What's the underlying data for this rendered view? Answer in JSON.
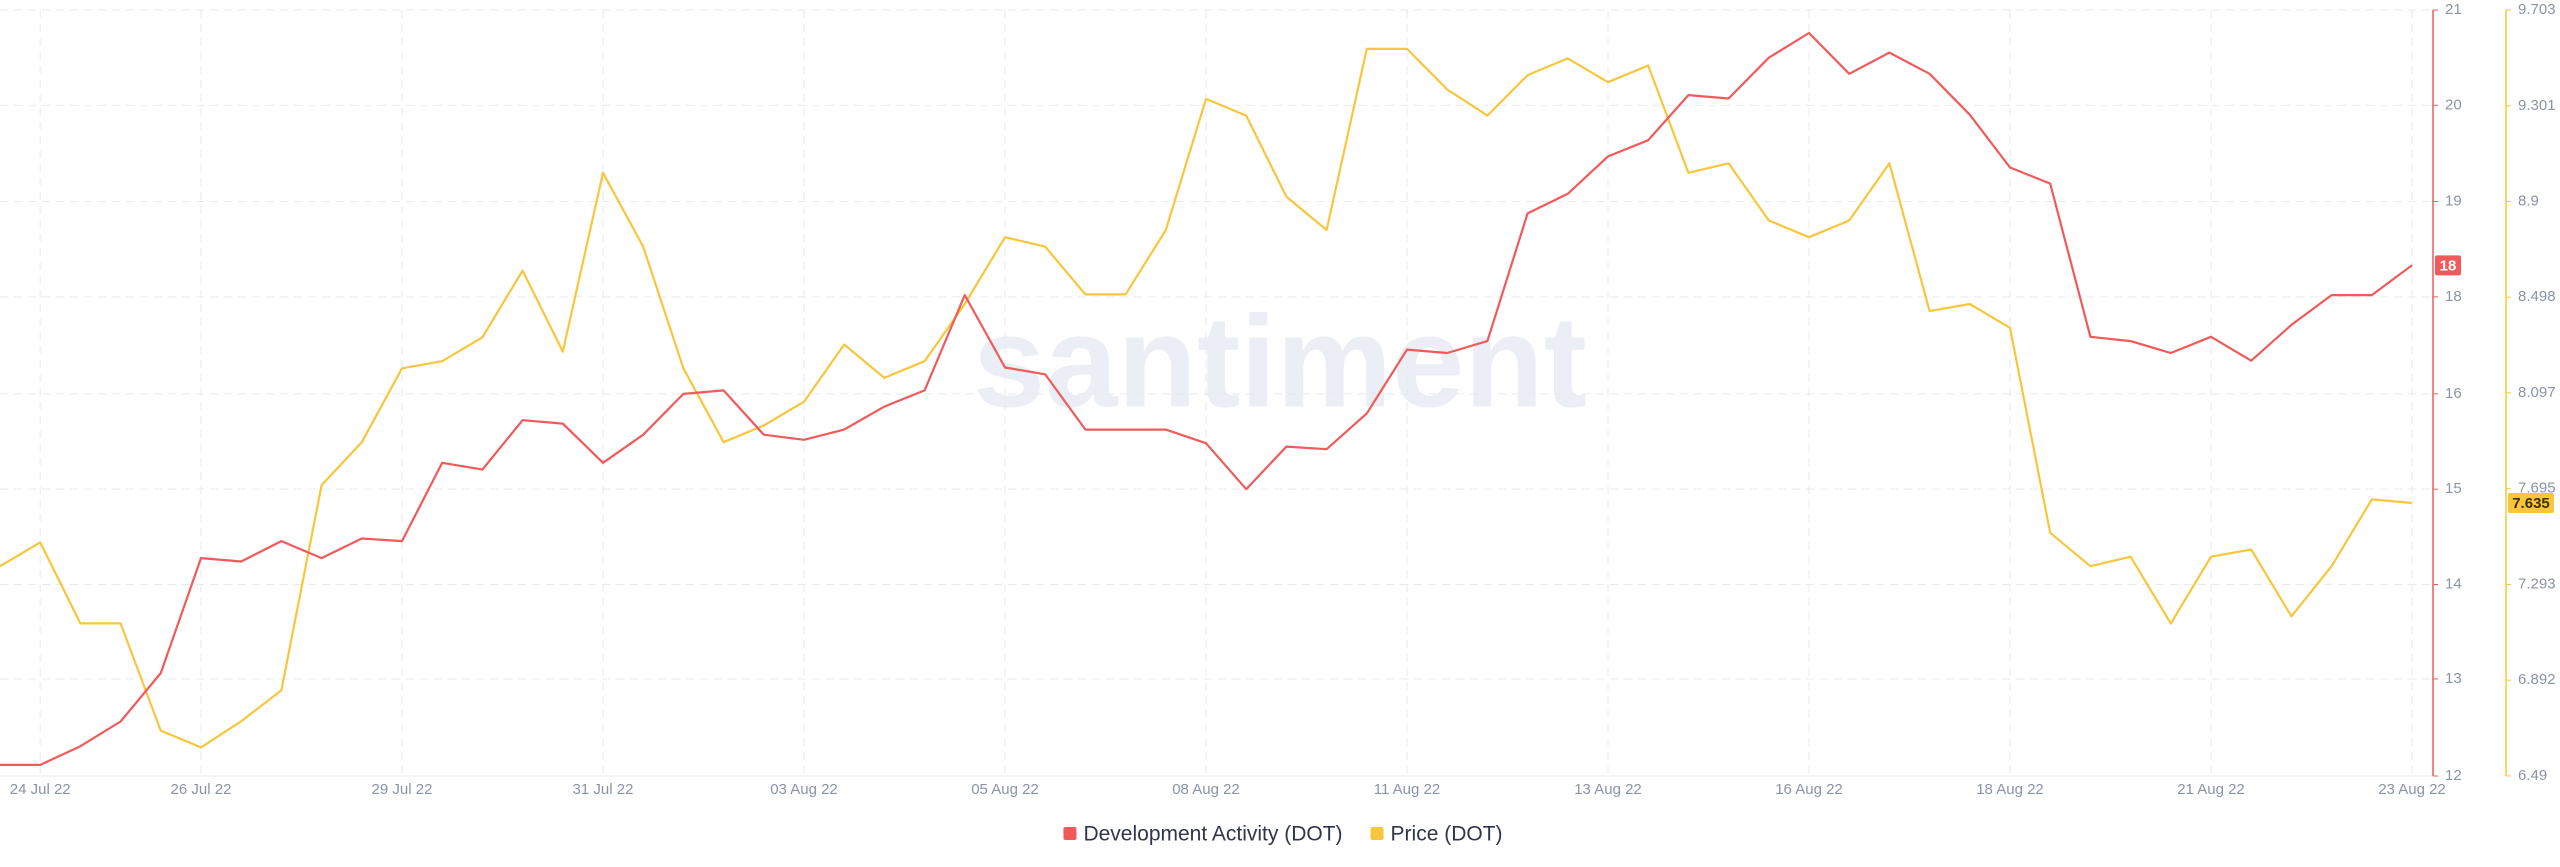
{
  "chart_data": {
    "type": "line",
    "watermark": "santiment",
    "categories": [
      null,
      "24 Jul 22",
      null,
      null,
      null,
      "26 Jul 22",
      null,
      null,
      null,
      null,
      "29 Jul 22",
      null,
      null,
      null,
      null,
      "31 Jul 22",
      null,
      null,
      null,
      null,
      "03 Aug 22",
      null,
      null,
      null,
      null,
      "05 Aug 22",
      null,
      null,
      null,
      null,
      "08 Aug 22",
      null,
      null,
      null,
      null,
      "11 Aug 22",
      null,
      null,
      null,
      null,
      "13 Aug 22",
      null,
      null,
      null,
      null,
      "16 Aug 22",
      null,
      null,
      null,
      null,
      "18 Aug 22",
      null,
      null,
      null,
      null,
      "21 Aug 22",
      null,
      null,
      null,
      null,
      "23 Aug 22"
    ],
    "series": [
      {
        "name": "Development Activity (DOT)",
        "color": "#f05a5a",
        "axis": "y",
        "values": [
          12.13,
          12.13,
          12.35,
          12.64,
          13.21,
          14.56,
          14.52,
          14.76,
          14.56,
          14.79,
          14.76,
          15.68,
          15.6,
          16.18,
          16.14,
          15.68,
          16.01,
          16.49,
          16.53,
          16.01,
          15.95,
          16.07,
          16.34,
          16.53,
          17.65,
          16.8,
          16.72,
          16.07,
          16.07,
          16.07,
          15.91,
          15.37,
          15.87,
          15.84,
          16.26,
          17.01,
          16.97,
          17.11,
          18.61,
          18.84,
          19.28,
          19.47,
          20.0,
          19.96,
          20.44,
          20.73,
          20.25,
          20.5,
          20.25,
          19.77,
          19.15,
          18.96,
          17.16,
          17.11,
          16.97,
          17.16,
          16.88,
          17.3,
          17.65,
          17.65,
          18
        ]
      },
      {
        "name": "Price (DOT)",
        "color": "#f8c63d",
        "axis": "y2",
        "values": [
          7.37,
          7.47,
          7.13,
          7.13,
          6.68,
          6.61,
          6.72,
          6.85,
          7.71,
          7.89,
          8.2,
          8.23,
          8.33,
          8.61,
          8.27,
          9.02,
          8.71,
          8.2,
          7.89,
          7.96,
          8.06,
          8.3,
          8.16,
          8.23,
          8.47,
          8.75,
          8.71,
          8.51,
          8.51,
          8.78,
          9.33,
          9.26,
          8.92,
          8.78,
          9.54,
          9.54,
          9.37,
          9.26,
          9.43,
          9.5,
          9.4,
          9.47,
          9.02,
          9.06,
          8.82,
          8.75,
          8.82,
          9.06,
          8.44,
          8.47,
          8.37,
          7.51,
          7.37,
          7.41,
          7.13,
          7.41,
          7.44,
          7.16,
          7.37,
          7.65,
          7.635
        ]
      }
    ],
    "ylim": [
      12,
      21
    ],
    "yticks": [
      12,
      {
        "value": 13.14,
        "label": "13"
      },
      {
        "value": 14.25,
        "label": "14"
      },
      {
        "value": 15.37,
        "label": "15"
      },
      {
        "value": 16.49,
        "label": "16"
      },
      {
        "value": 17.63,
        "label": "18"
      },
      {
        "value": 18.75,
        "label": "19"
      },
      {
        "value": 19.88,
        "label": "20"
      },
      21
    ],
    "y2lim": [
      6.49,
      9.703
    ],
    "y2ticks": [
      6.49,
      6.892,
      7.293,
      7.695,
      8.097,
      8.498,
      8.9,
      9.301,
      9.703
    ],
    "grid": true,
    "legend": "bottom"
  }
}
